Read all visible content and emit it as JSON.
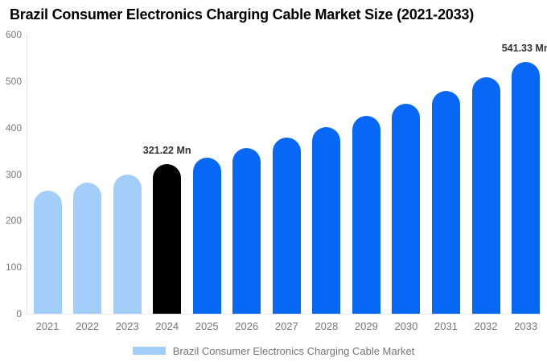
{
  "title": "Brazil Consumer Electronics Charging Cable Market Size (2021-2033)",
  "legend": {
    "label": "Brazil Consumer Electronics Charging Cable Market",
    "swatch_color": "#A4CEFA"
  },
  "colors": {
    "light_blue": "#A4CEFA",
    "bright_blue": "#0768F5",
    "highlight_black": "#000000",
    "axis_line": "#E3E3E3",
    "tick_text": "#757575",
    "annotation_text": "#333333",
    "background": "#FFFFFF"
  },
  "chart_data": {
    "type": "bar",
    "title": "Brazil Consumer Electronics Charging Cable Market Size (2021-2033)",
    "xlabel": "",
    "ylabel": "",
    "unit": "Mn",
    "categories": [
      "2021",
      "2022",
      "2023",
      "2024",
      "2025",
      "2026",
      "2027",
      "2028",
      "2029",
      "2030",
      "2031",
      "2032",
      "2033"
    ],
    "values": [
      265,
      282,
      300,
      321.22,
      336,
      357,
      379,
      402,
      426,
      452,
      479,
      508,
      541.33
    ],
    "bar_colors": [
      "#A4CEFA",
      "#A4CEFA",
      "#A4CEFA",
      "#000000",
      "#0768F5",
      "#0768F5",
      "#0768F5",
      "#0768F5",
      "#0768F5",
      "#0768F5",
      "#0768F5",
      "#0768F5",
      "#0768F5"
    ],
    "annotations": [
      {
        "category": "2024",
        "text": "321.22 Mn"
      },
      {
        "category": "2033",
        "text": "541.33 Mn"
      }
    ],
    "ylim": [
      0,
      600
    ],
    "yticks": [
      0,
      100,
      200,
      300,
      400,
      500,
      600
    ],
    "grid": false,
    "legend_position": "bottom",
    "legend_entries": [
      "Brazil Consumer Electronics Charging Cable Market"
    ]
  }
}
